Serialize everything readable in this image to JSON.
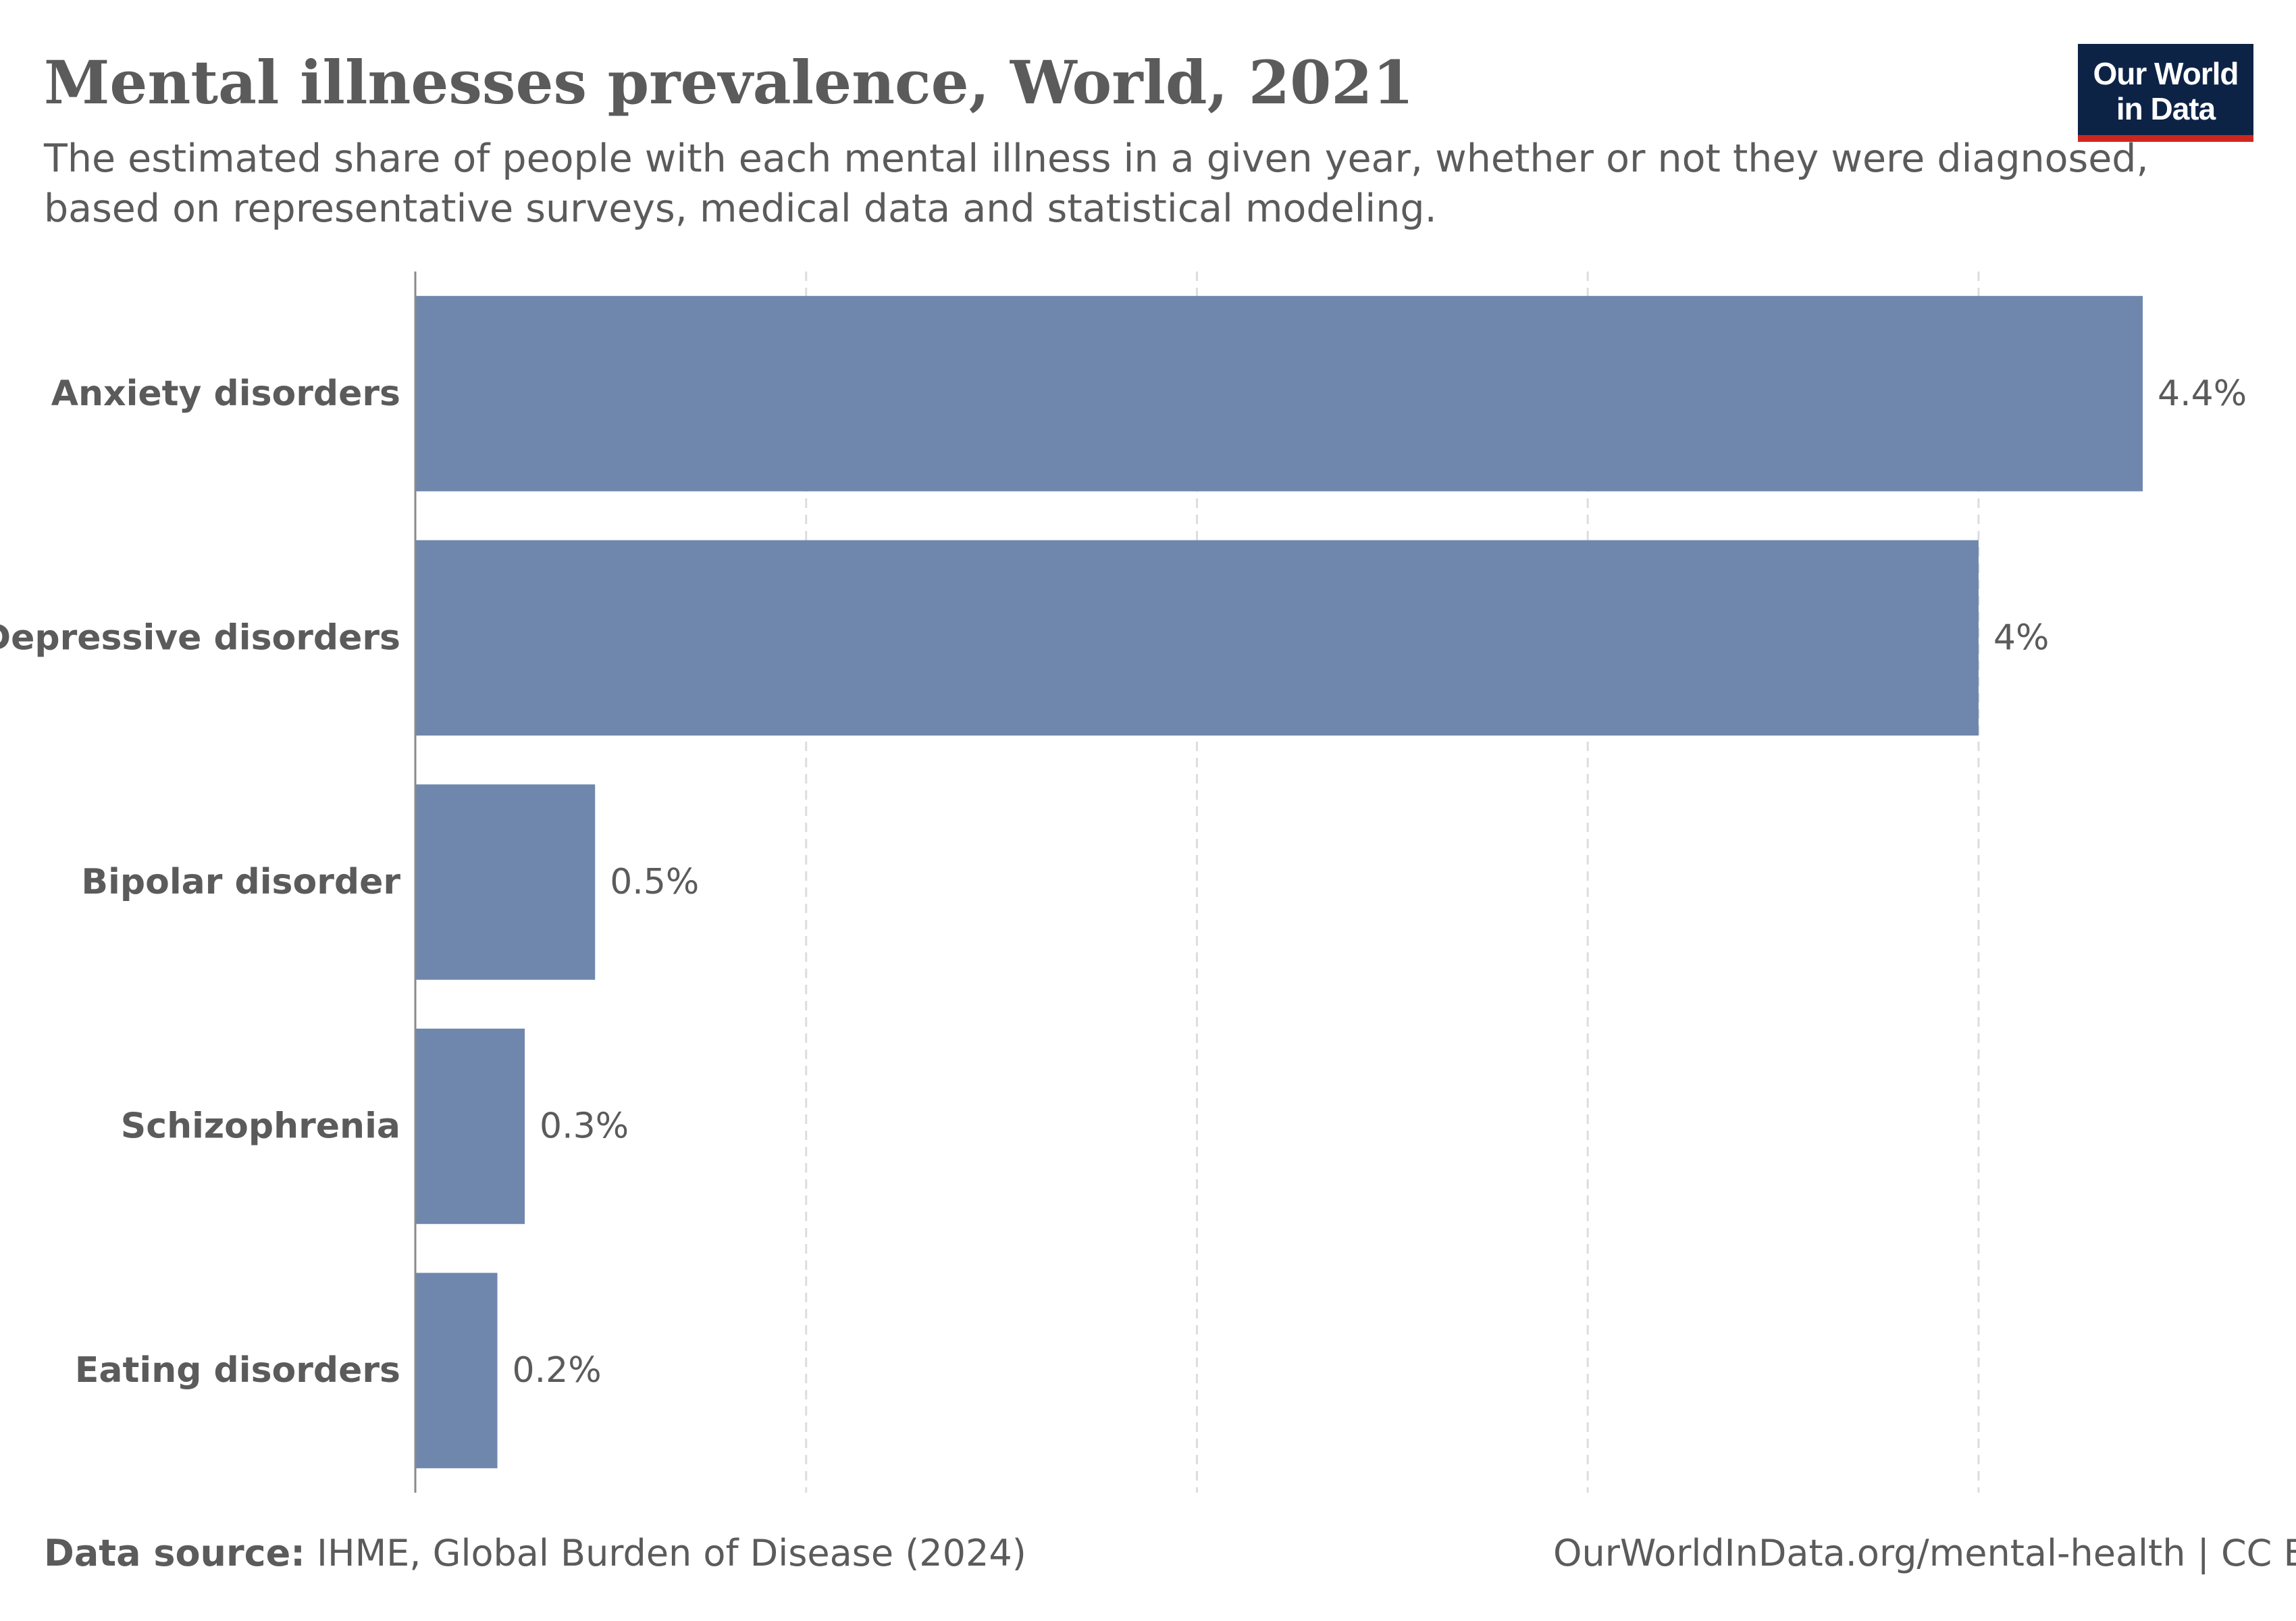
{
  "header": {
    "title": "Mental illnesses prevalence, World, 2021",
    "subtitle_line1": "The estimated share of people with each mental illness in a given year, whether or not they were diagnosed,",
    "subtitle_line2": "based on representative surveys, medical data and statistical modeling."
  },
  "logo": {
    "line1": "Our World",
    "line2": "in Data",
    "colors": {
      "background": "#0d2346",
      "accent": "#ce261e"
    }
  },
  "chart_data": {
    "type": "bar",
    "orientation": "horizontal",
    "categories": [
      "Anxiety disorders",
      "Depressive disorders",
      "Bipolar disorder",
      "Schizophrenia",
      "Eating disorders"
    ],
    "values": [
      4.42,
      4.0,
      0.46,
      0.28,
      0.21
    ],
    "data_labels": [
      "4.4%",
      "4%",
      "0.5%",
      "0.3%",
      "0.2%"
    ],
    "xlim": [
      0,
      4.42
    ],
    "gridlines_at": [
      1,
      2,
      3,
      4
    ],
    "grid": true,
    "x_tick_labels": false,
    "bar_color": "#6f87ad"
  },
  "footer": {
    "source_label": "Data source:",
    "source_text": "IHME, Global Burden of Disease (2024)",
    "credit": "OurWorldInData.org/mental-health | CC BY"
  }
}
